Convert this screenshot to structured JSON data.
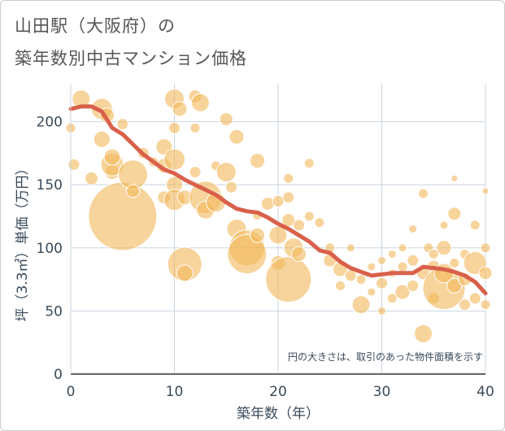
{
  "header": {
    "title_line1": "山田駅（大阪府）の",
    "title_line2": "築年数別中古マンション価格"
  },
  "chart_data": {
    "type": "scatter",
    "title": "山田駅（大阪府）の築年数別中古マンション価格",
    "xlabel": "築年数（年）",
    "ylabel": "坪（3.3㎡）単価（万円）",
    "xlim": [
      0,
      40
    ],
    "ylim": [
      0,
      230
    ],
    "x_ticks": [
      "0",
      "10",
      "20",
      "30",
      "40"
    ],
    "y_ticks": [
      "0",
      "50",
      "100",
      "150",
      "200"
    ],
    "grid": true,
    "annotation": "円の大きさは、取引のあった物件面積を示す",
    "colors": {
      "bubble": "#f2b85a",
      "trend": "#d9604a",
      "axis_text": "#3a4a5a",
      "grid": "#c8d4e0"
    },
    "trend_line": {
      "x": [
        0,
        1,
        2,
        3,
        4,
        5,
        6,
        7,
        8,
        9,
        10,
        11,
        12,
        13,
        14,
        15,
        16,
        17,
        18,
        19,
        20,
        21,
        22,
        23,
        24,
        25,
        26,
        27,
        28,
        29,
        30,
        31,
        32,
        33,
        34,
        35,
        36,
        37,
        38,
        39,
        40
      ],
      "y": [
        210,
        212,
        212,
        208,
        195,
        190,
        182,
        174,
        168,
        162,
        159,
        154,
        150,
        146,
        142,
        136,
        131,
        129,
        128,
        124,
        119,
        115,
        110,
        105,
        98,
        96,
        89,
        84,
        81,
        78,
        79,
        80,
        80,
        80,
        85,
        84,
        83,
        81,
        78,
        73,
        64
      ]
    },
    "bubbles": [
      {
        "x": 0,
        "y": 195,
        "size": 6
      },
      {
        "x": 1,
        "y": 218,
        "size": 11
      },
      {
        "x": 0.3,
        "y": 166,
        "size": 7
      },
      {
        "x": 2,
        "y": 155,
        "size": 8
      },
      {
        "x": 3,
        "y": 210,
        "size": 13
      },
      {
        "x": 3,
        "y": 186,
        "size": 10
      },
      {
        "x": 3.5,
        "y": 205,
        "size": 9
      },
      {
        "x": 4,
        "y": 160,
        "size": 9
      },
      {
        "x": 4,
        "y": 166,
        "size": 14
      },
      {
        "x": 4,
        "y": 172,
        "size": 10
      },
      {
        "x": 5,
        "y": 125,
        "size": 42
      },
      {
        "x": 5,
        "y": 198,
        "size": 7
      },
      {
        "x": 6,
        "y": 158,
        "size": 18
      },
      {
        "x": 6,
        "y": 145,
        "size": 8
      },
      {
        "x": 7,
        "y": 175,
        "size": 7
      },
      {
        "x": 8,
        "y": 168,
        "size": 6
      },
      {
        "x": 9,
        "y": 180,
        "size": 10
      },
      {
        "x": 9,
        "y": 165,
        "size": 9
      },
      {
        "x": 9,
        "y": 140,
        "size": 8
      },
      {
        "x": 10,
        "y": 218,
        "size": 12
      },
      {
        "x": 10,
        "y": 195,
        "size": 7
      },
      {
        "x": 10,
        "y": 170,
        "size": 13
      },
      {
        "x": 10,
        "y": 150,
        "size": 10
      },
      {
        "x": 10,
        "y": 138,
        "size": 13
      },
      {
        "x": 10.5,
        "y": 210,
        "size": 9
      },
      {
        "x": 11,
        "y": 87,
        "size": 21
      },
      {
        "x": 11,
        "y": 80,
        "size": 10
      },
      {
        "x": 11,
        "y": 140,
        "size": 9
      },
      {
        "x": 12,
        "y": 220,
        "size": 8
      },
      {
        "x": 12,
        "y": 195,
        "size": 6
      },
      {
        "x": 12,
        "y": 160,
        "size": 7
      },
      {
        "x": 12.5,
        "y": 215,
        "size": 11
      },
      {
        "x": 13,
        "y": 140,
        "size": 20
      },
      {
        "x": 13,
        "y": 130,
        "size": 11
      },
      {
        "x": 14,
        "y": 165,
        "size": 6
      },
      {
        "x": 14,
        "y": 136,
        "size": 12
      },
      {
        "x": 15,
        "y": 160,
        "size": 12
      },
      {
        "x": 15,
        "y": 202,
        "size": 8
      },
      {
        "x": 15.5,
        "y": 148,
        "size": 7
      },
      {
        "x": 16,
        "y": 188,
        "size": 9
      },
      {
        "x": 16,
        "y": 115,
        "size": 12
      },
      {
        "x": 17,
        "y": 100,
        "size": 22
      },
      {
        "x": 17,
        "y": 95,
        "size": 24
      },
      {
        "x": 18,
        "y": 110,
        "size": 9
      },
      {
        "x": 18,
        "y": 126,
        "size": 6
      },
      {
        "x": 18,
        "y": 169,
        "size": 9
      },
      {
        "x": 19,
        "y": 135,
        "size": 8
      },
      {
        "x": 20,
        "y": 137,
        "size": 7
      },
      {
        "x": 20,
        "y": 110,
        "size": 11
      },
      {
        "x": 20,
        "y": 88,
        "size": 9
      },
      {
        "x": 21,
        "y": 75,
        "size": 28
      },
      {
        "x": 21,
        "y": 140,
        "size": 7
      },
      {
        "x": 21,
        "y": 155,
        "size": 6
      },
      {
        "x": 21,
        "y": 122,
        "size": 8
      },
      {
        "x": 21.5,
        "y": 100,
        "size": 12
      },
      {
        "x": 22,
        "y": 95,
        "size": 9
      },
      {
        "x": 22,
        "y": 118,
        "size": 7
      },
      {
        "x": 23,
        "y": 125,
        "size": 6
      },
      {
        "x": 23,
        "y": 167,
        "size": 6
      },
      {
        "x": 24,
        "y": 120,
        "size": 6
      },
      {
        "x": 25,
        "y": 100,
        "size": 6
      },
      {
        "x": 25,
        "y": 90,
        "size": 8
      },
      {
        "x": 26,
        "y": 83,
        "size": 9
      },
      {
        "x": 26,
        "y": 70,
        "size": 6
      },
      {
        "x": 27,
        "y": 78,
        "size": 7
      },
      {
        "x": 27,
        "y": 100,
        "size": 5
      },
      {
        "x": 28,
        "y": 55,
        "size": 11
      },
      {
        "x": 28,
        "y": 75,
        "size": 6
      },
      {
        "x": 29,
        "y": 85,
        "size": 5
      },
      {
        "x": 29,
        "y": 65,
        "size": 5
      },
      {
        "x": 30,
        "y": 50,
        "size": 5
      },
      {
        "x": 30,
        "y": 72,
        "size": 7
      },
      {
        "x": 30,
        "y": 90,
        "size": 5
      },
      {
        "x": 31,
        "y": 60,
        "size": 6
      },
      {
        "x": 31,
        "y": 80,
        "size": 5
      },
      {
        "x": 31,
        "y": 95,
        "size": 5
      },
      {
        "x": 32,
        "y": 65,
        "size": 9
      },
      {
        "x": 32,
        "y": 85,
        "size": 6
      },
      {
        "x": 32,
        "y": 100,
        "size": 5
      },
      {
        "x": 33,
        "y": 70,
        "size": 7
      },
      {
        "x": 33,
        "y": 90,
        "size": 7
      },
      {
        "x": 33,
        "y": 115,
        "size": 5
      },
      {
        "x": 34,
        "y": 32,
        "size": 11
      },
      {
        "x": 34,
        "y": 143,
        "size": 6
      },
      {
        "x": 34,
        "y": 80,
        "size": 8
      },
      {
        "x": 34.5,
        "y": 100,
        "size": 6
      },
      {
        "x": 35,
        "y": 60,
        "size": 7
      },
      {
        "x": 35,
        "y": 85,
        "size": 8
      },
      {
        "x": 35,
        "y": 95,
        "size": 6
      },
      {
        "x": 36,
        "y": 68,
        "size": 26
      },
      {
        "x": 36,
        "y": 80,
        "size": 12
      },
      {
        "x": 36,
        "y": 100,
        "size": 9
      },
      {
        "x": 36,
        "y": 118,
        "size": 5
      },
      {
        "x": 37,
        "y": 127,
        "size": 8
      },
      {
        "x": 37,
        "y": 155,
        "size": 4
      },
      {
        "x": 37,
        "y": 70,
        "size": 9
      },
      {
        "x": 37,
        "y": 88,
        "size": 6
      },
      {
        "x": 38,
        "y": 55,
        "size": 7
      },
      {
        "x": 38,
        "y": 75,
        "size": 8
      },
      {
        "x": 38,
        "y": 95,
        "size": 6
      },
      {
        "x": 39,
        "y": 88,
        "size": 14
      },
      {
        "x": 39,
        "y": 60,
        "size": 7
      },
      {
        "x": 39,
        "y": 118,
        "size": 6
      },
      {
        "x": 40,
        "y": 145,
        "size": 4
      },
      {
        "x": 40,
        "y": 100,
        "size": 6
      },
      {
        "x": 40,
        "y": 80,
        "size": 8
      },
      {
        "x": 40,
        "y": 55,
        "size": 6
      }
    ]
  }
}
